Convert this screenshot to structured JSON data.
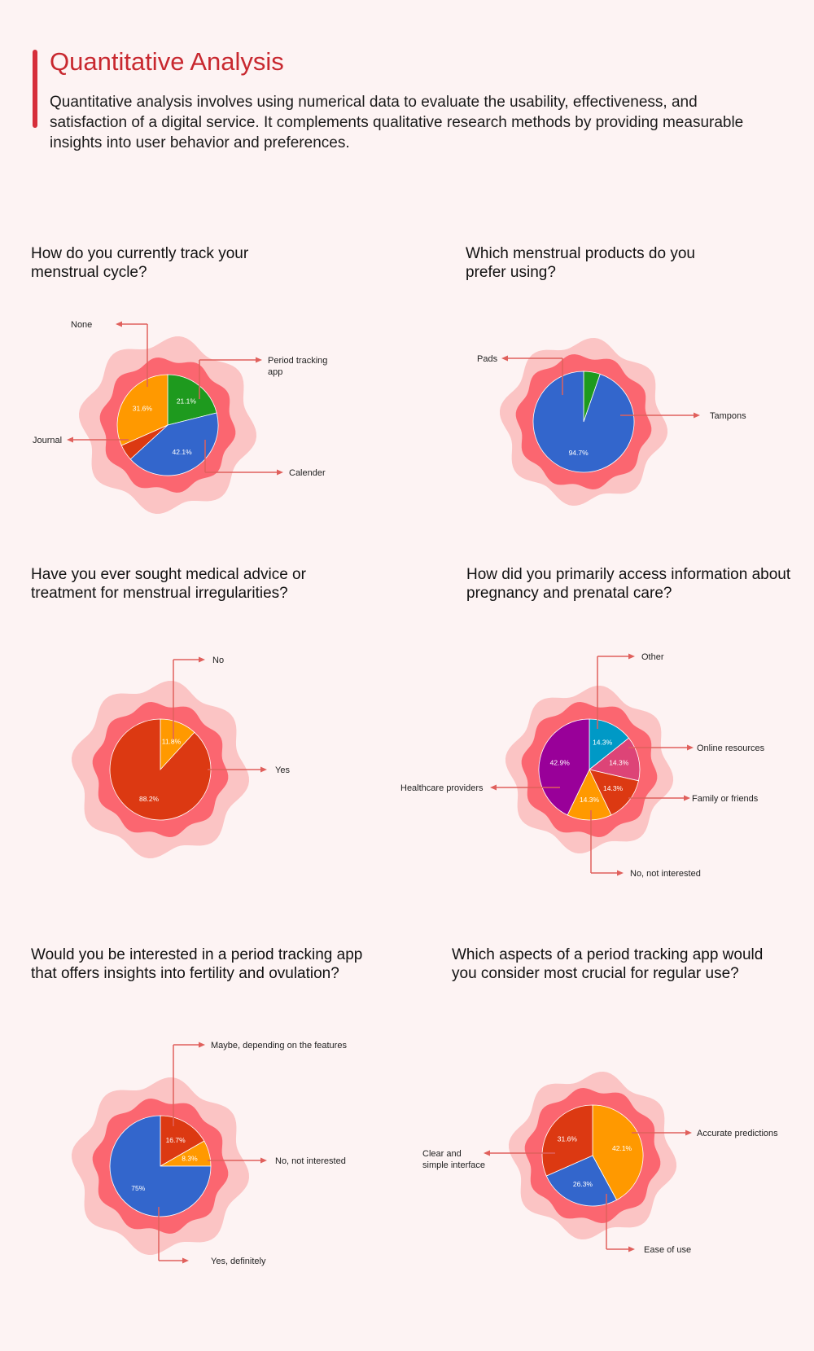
{
  "header": {
    "title": "Quantitative Analysis",
    "description": "Quantitative analysis involves using numerical data to evaluate the usability, effectiveness, and satisfaction of a digital service. It complements qualitative research methods by providing measurable insights into user behavior and preferences."
  },
  "colors": {
    "background": "#fdf3f3",
    "accent": "#d62e3a",
    "blob_outer": "#fbc4c4",
    "blob_inner": "#fb6670",
    "arrow": "#e0605c"
  },
  "chart_data": [
    {
      "type": "pie",
      "title": "How do you currently track your menstrual cycle?",
      "slices": [
        {
          "name": "Period tracking app",
          "value": 21.1,
          "label": "21.1%",
          "color": "#1e9a1e"
        },
        {
          "name": "Calender",
          "value": 42.1,
          "label": "42.1%",
          "color": "#3366cc"
        },
        {
          "name": "Journal",
          "value": 5.2,
          "label": "",
          "color": "#dc3912"
        },
        {
          "name": "None",
          "value": 31.6,
          "label": "31.6%",
          "color": "#ff9900"
        }
      ]
    },
    {
      "type": "pie",
      "title": "Which menstrual products do you prefer using?",
      "slices": [
        {
          "name": "Tampons",
          "value": 5.3,
          "label": "",
          "color": "#1e9a1e"
        },
        {
          "name": "Pads",
          "value": 94.7,
          "label": "94.7%",
          "color": "#3366cc"
        }
      ]
    },
    {
      "type": "pie",
      "title": "Have you ever sought medical advice or treatment for menstrual irregularities?",
      "slices": [
        {
          "name": "Yes",
          "value": 11.8,
          "label": "11.8%",
          "color": "#ff9900"
        },
        {
          "name": "No",
          "value": 88.2,
          "label": "88.2%",
          "color": "#dc3912"
        }
      ]
    },
    {
      "type": "pie",
      "title": "How did you primarily access information about pregnancy and prenatal care?",
      "slices": [
        {
          "name": "Other",
          "value": 14.3,
          "label": "14.3%",
          "color": "#0099c6"
        },
        {
          "name": "Online resources",
          "value": 14.3,
          "label": "14.3%",
          "color": "#dd4477"
        },
        {
          "name": "Family or friends",
          "value": 14.3,
          "label": "14.3%",
          "color": "#dc3912"
        },
        {
          "name": "No, not interested",
          "value": 14.3,
          "label": "14.3%",
          "color": "#ff9900"
        },
        {
          "name": "Healthcare providers",
          "value": 42.9,
          "label": "42.9%",
          "color": "#990099"
        }
      ]
    },
    {
      "type": "pie",
      "title": "Would you be interested in a period tracking app that offers insights into fertility and ovulation?",
      "slices": [
        {
          "name": "Maybe, depending on the features",
          "value": 16.7,
          "label": "16.7%",
          "color": "#dc3912"
        },
        {
          "name": "No, not interested",
          "value": 8.3,
          "label": "8.3%",
          "color": "#ff9900"
        },
        {
          "name": "Yes, definitely",
          "value": 75,
          "label": "75%",
          "color": "#3366cc"
        }
      ]
    },
    {
      "type": "pie",
      "title": "Which aspects of a period tracking app would you consider most crucial for regular use?",
      "slices": [
        {
          "name": "Accurate predictions",
          "value": 42.1,
          "label": "42.1%",
          "color": "#ff9900"
        },
        {
          "name": "Ease of use",
          "value": 26.3,
          "label": "26.3%",
          "color": "#3366cc"
        },
        {
          "name": "Clear and simple interface",
          "value": 31.6,
          "label": "31.6%",
          "color": "#dc3912"
        }
      ]
    }
  ]
}
